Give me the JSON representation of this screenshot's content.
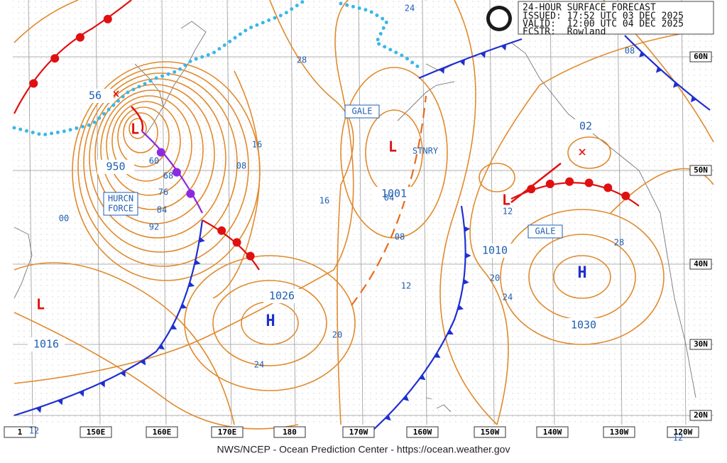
{
  "header": {
    "title": "24-HOUR SURFACE FORECAST",
    "issued": "ISSUED: 17:52 UTC 03 DEC 2025",
    "valid": "VALID:  12:00 UTC 04 DEC 2025",
    "forecaster": "FCSTR:  Rowland"
  },
  "footer": "NWS/NCEP - Ocean Prediction Center - https://ocean.weather.gov",
  "lon_labels": [
    "1",
    "150E",
    "160E",
    "170E",
    "180",
    "170W",
    "160W",
    "150W",
    "140W",
    "130W",
    "120W"
  ],
  "lat_labels": [
    "60N",
    "50N",
    "40N",
    "30N",
    "20N"
  ],
  "centers": [
    "56",
    "950",
    "1016",
    "1026",
    "1001",
    "1010",
    "1030",
    "02"
  ],
  "isobar_labels": [
    "28",
    "24",
    "16",
    "08",
    "60",
    "68",
    "76",
    "84",
    "92",
    "00",
    "16",
    "20",
    "24",
    "12",
    "08",
    "04",
    "12",
    "20",
    "24",
    "28",
    "08",
    "12",
    "12"
  ],
  "highs": [
    "H",
    "H"
  ],
  "boxes": [
    "GALE",
    "HURCN",
    "FORCE",
    "GALE",
    "STNRY"
  ]
}
